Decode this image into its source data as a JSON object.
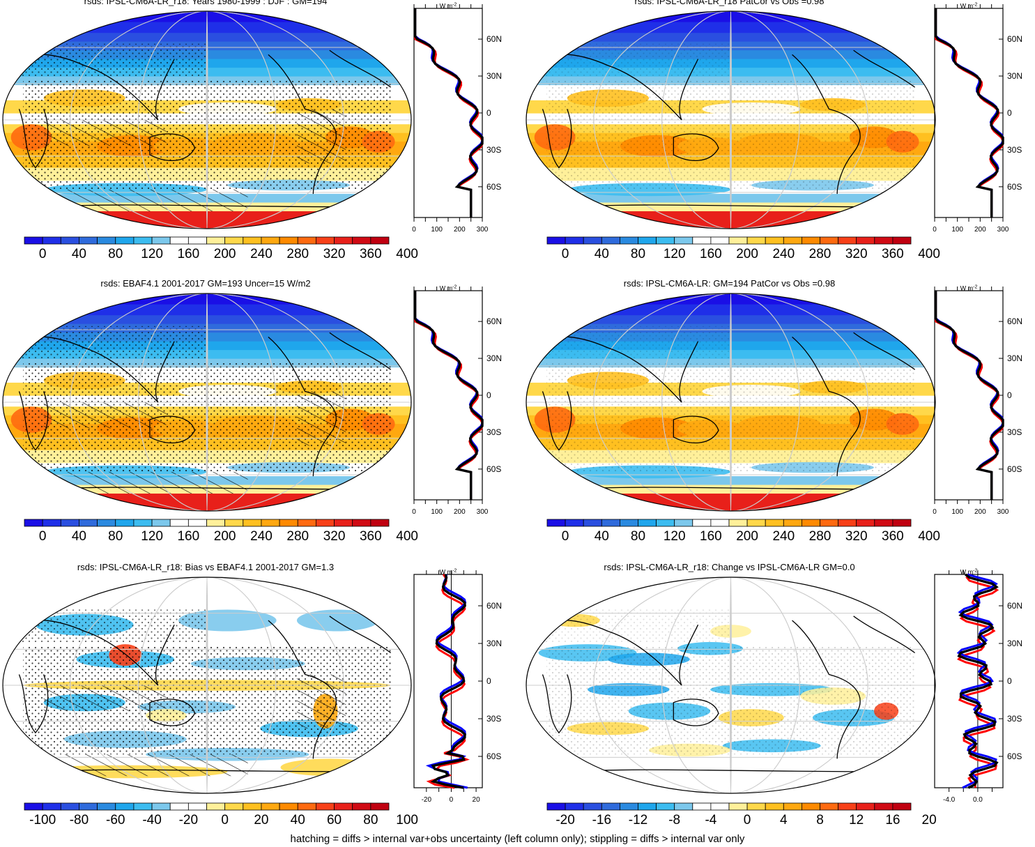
{
  "footer": "hatching = diffs > internal var+obs uncertainty (left column only); stippling = diffs > internal var only",
  "zonal_unit": "W m",
  "zonal_unit_exp": "-2",
  "lat_labels": [
    "60N",
    "30N",
    "0",
    "30S",
    "60S"
  ],
  "panels": [
    {
      "id": "p1",
      "title": "rsds: IPSL-CM6A-LR_r18: Years 1980-1999 : DJF : GM=194",
      "map": "abs",
      "hatch": true,
      "colorbar": {
        "ticks": [
          "0",
          "40",
          "80",
          "120",
          "160",
          "200",
          "240",
          "280",
          "320",
          "360",
          "400"
        ]
      },
      "zonal_ticks": [
        "0",
        "100",
        "200",
        "300"
      ],
      "zonal": "abs"
    },
    {
      "id": "p2",
      "title": "rsds: IPSL-CM6A-LR_r18 PatCor vs Obs =0.98",
      "map": "abs",
      "hatch": false,
      "colorbar": {
        "ticks": [
          "0",
          "40",
          "80",
          "120",
          "160",
          "200",
          "240",
          "280",
          "320",
          "360",
          "400"
        ]
      },
      "zonal_ticks": [
        "0",
        "100",
        "200",
        "300"
      ],
      "zonal": "abs"
    },
    {
      "id": "p3",
      "title": "rsds: EBAF4.1 2001-2017 GM=193 Uncer=15 W/m2",
      "map": "abs",
      "hatch": true,
      "colorbar": {
        "ticks": [
          "0",
          "40",
          "80",
          "120",
          "160",
          "200",
          "240",
          "280",
          "320",
          "360",
          "400"
        ]
      },
      "zonal_ticks": [
        "0",
        "100",
        "200",
        "300"
      ],
      "zonal": "abs"
    },
    {
      "id": "p4",
      "title": "rsds: IPSL-CM6A-LR: GM=194 PatCor vs Obs =0.98",
      "map": "abs",
      "hatch": false,
      "colorbar": {
        "ticks": [
          "0",
          "40",
          "80",
          "120",
          "160",
          "200",
          "240",
          "280",
          "320",
          "360",
          "400"
        ]
      },
      "zonal_ticks": [
        "0",
        "100",
        "200",
        "300"
      ],
      "zonal": "abs"
    },
    {
      "id": "p5",
      "title": "rsds: IPSL-CM6A-LR_r18: Bias vs EBAF4.1 2001-2017 GM=1.3",
      "map": "bias",
      "hatch": true,
      "colorbar": {
        "ticks": [
          "-100",
          "-80",
          "-60",
          "-40",
          "-20",
          "0",
          "20",
          "40",
          "60",
          "80",
          "100"
        ]
      },
      "zonal_ticks": [
        "-20",
        "0",
        "20"
      ],
      "zonal": "bias"
    },
    {
      "id": "p6",
      "title": "rsds: IPSL-CM6A-LR_r18: Change vs IPSL-CM6A-LR GM=0.0",
      "map": "change",
      "hatch": false,
      "colorbar": {
        "ticks": [
          "-20",
          "-16",
          "-12",
          "-8",
          "-4",
          "0",
          "4",
          "8",
          "12",
          "16",
          "20"
        ]
      },
      "zonal_ticks": [
        "-4.0",
        "0.0"
      ],
      "zonal": "change"
    }
  ],
  "colors": {
    "palette": [
      "#1a0fe6",
      "#1f2fe8",
      "#2a4fe0",
      "#2f6bdc",
      "#2a8ae0",
      "#1fa6ec",
      "#3cbcf0",
      "#7cc8ec",
      "#ffffff",
      "#ffffff",
      "#fff09a",
      "#ffd84a",
      "#ffc020",
      "#ffa810",
      "#ff8a00",
      "#ff6a10",
      "#f84018",
      "#e8201a",
      "#d00a14",
      "#c00010"
    ],
    "model": "#ff0000",
    "obs": "#0000ff",
    "mean": "#000000"
  }
}
